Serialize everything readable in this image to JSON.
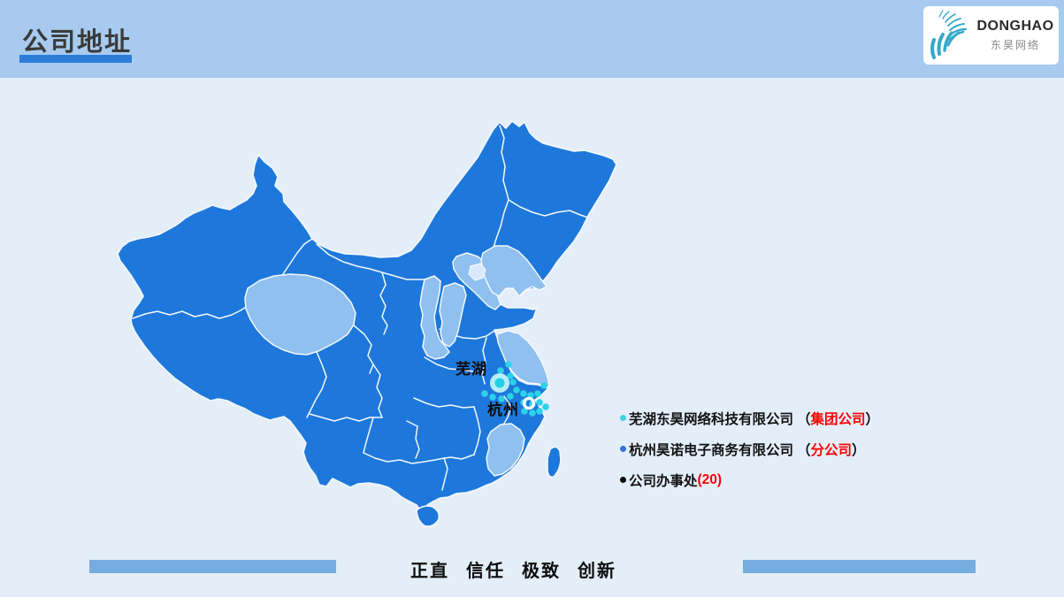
{
  "header": {
    "title": "公司地址"
  },
  "logo": {
    "name": "DONGHAO",
    "subtitle": "东昊网络"
  },
  "map": {
    "labels": {
      "wuhu": "芜湖",
      "hangzhou": "杭州"
    },
    "office_dots": [
      [
        466,
        299
      ],
      [
        475,
        292
      ],
      [
        477,
        305
      ],
      [
        480,
        312
      ],
      [
        484,
        321
      ],
      [
        448,
        325
      ],
      [
        457,
        329
      ],
      [
        467,
        331
      ],
      [
        477,
        328
      ],
      [
        492,
        325
      ],
      [
        500,
        327
      ],
      [
        508,
        325
      ],
      [
        515,
        316
      ],
      [
        517,
        340
      ],
      [
        492,
        335
      ],
      [
        502,
        337
      ],
      [
        510,
        335
      ],
      [
        493,
        345
      ],
      [
        502,
        347
      ],
      [
        510,
        345
      ]
    ]
  },
  "legend": {
    "items": [
      {
        "bullet_color": "#3ED2E8",
        "name": "芜湖东昊网络科技有限公司",
        "open": "（",
        "highlight": "集团公司",
        "close": "）",
        "highlight_color": "#FF0000"
      },
      {
        "bullet_color": "#2E74D9",
        "name": "杭州昊诺电子商务有限公司",
        "open": "（",
        "highlight": "分公司",
        "close": "）",
        "highlight_color": "#FF0000"
      },
      {
        "bullet_color": "#0A0A0A",
        "name": "公司办事处",
        "open": "",
        "highlight": "(20)",
        "close": "",
        "highlight_color": "#FF0000"
      }
    ]
  },
  "footer": {
    "values": [
      "正直",
      "信任",
      "极致",
      "创新"
    ]
  },
  "colors": {
    "header_bg": "#A7CAEE",
    "content_bg": "#E4EEF9",
    "title_text": "#3A3A3A",
    "title_accent": "#2E7CD9",
    "province_dark": "#1E78DB",
    "province_light": "#8FC0EF",
    "province_pale": "#D9E8FA",
    "map_border": "#F2F8FE",
    "marker_core": "#22CFE7",
    "marker_ring": "#B5EEF7",
    "office_dot": "#2BD3E9",
    "hangzhou_ring": "#FFFFFF",
    "footer_bar": "#76ACDF",
    "legend_text": "#111111",
    "logo_teal": "#33A9C9",
    "logo_text": "#2B2B2B",
    "logo_subtext": "#8A8A8A"
  }
}
